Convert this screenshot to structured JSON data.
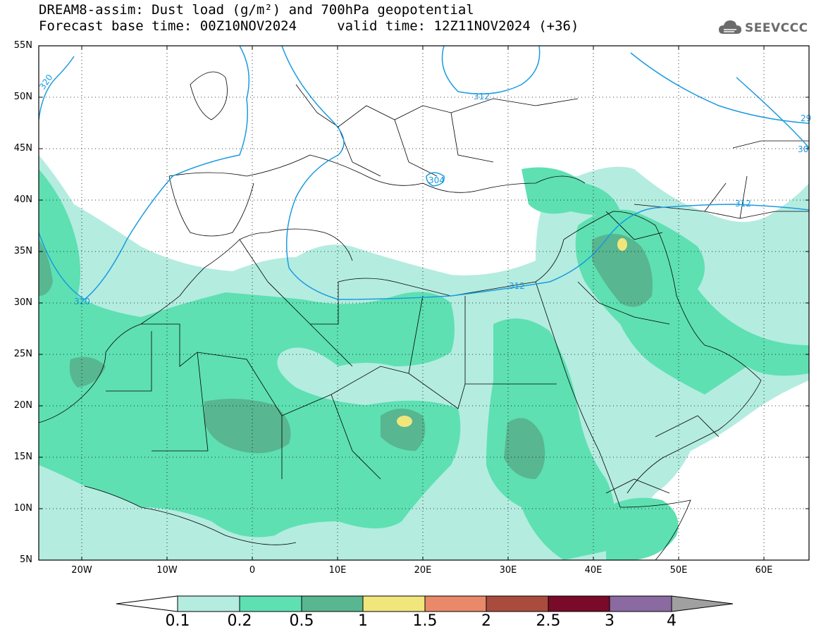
{
  "title": {
    "line1": "DREAM8-assim: Dust load (g/m²) and 700hPa geopotential",
    "line2": "Forecast base time: 00Z10NOV2024     valid time: 12Z11NOV2024 (+36)"
  },
  "logo": {
    "text": "SEEVCCC",
    "icon": "cloud-icon"
  },
  "map": {
    "projection": "latlon",
    "lon_range": [
      -25,
      65
    ],
    "lat_range": [
      5,
      55
    ],
    "lat_labels": [
      "55N",
      "50N",
      "45N",
      "40N",
      "35N",
      "30N",
      "25N",
      "20N",
      "15N",
      "10N",
      "5N"
    ],
    "lon_labels": [
      "20W",
      "10W",
      "0",
      "10E",
      "20E",
      "30E",
      "40E",
      "50E",
      "60E"
    ],
    "contour_labels": [
      "320",
      "312",
      "304",
      "312",
      "320",
      "312",
      "29",
      "30"
    ],
    "contour_color": "#1a9be0"
  },
  "colorbar": {
    "levels": [
      "0.1",
      "0.2",
      "0.5",
      "1",
      "1.5",
      "2",
      "2.5",
      "3",
      "4"
    ],
    "colors": [
      "#ffffff",
      "#b4ece0",
      "#5ee0b2",
      "#58b690",
      "#f0e67c",
      "#e9896a",
      "#a94c3e",
      "#7a0a2a",
      "#8a6aa0",
      "#a0a0a0"
    ]
  }
}
